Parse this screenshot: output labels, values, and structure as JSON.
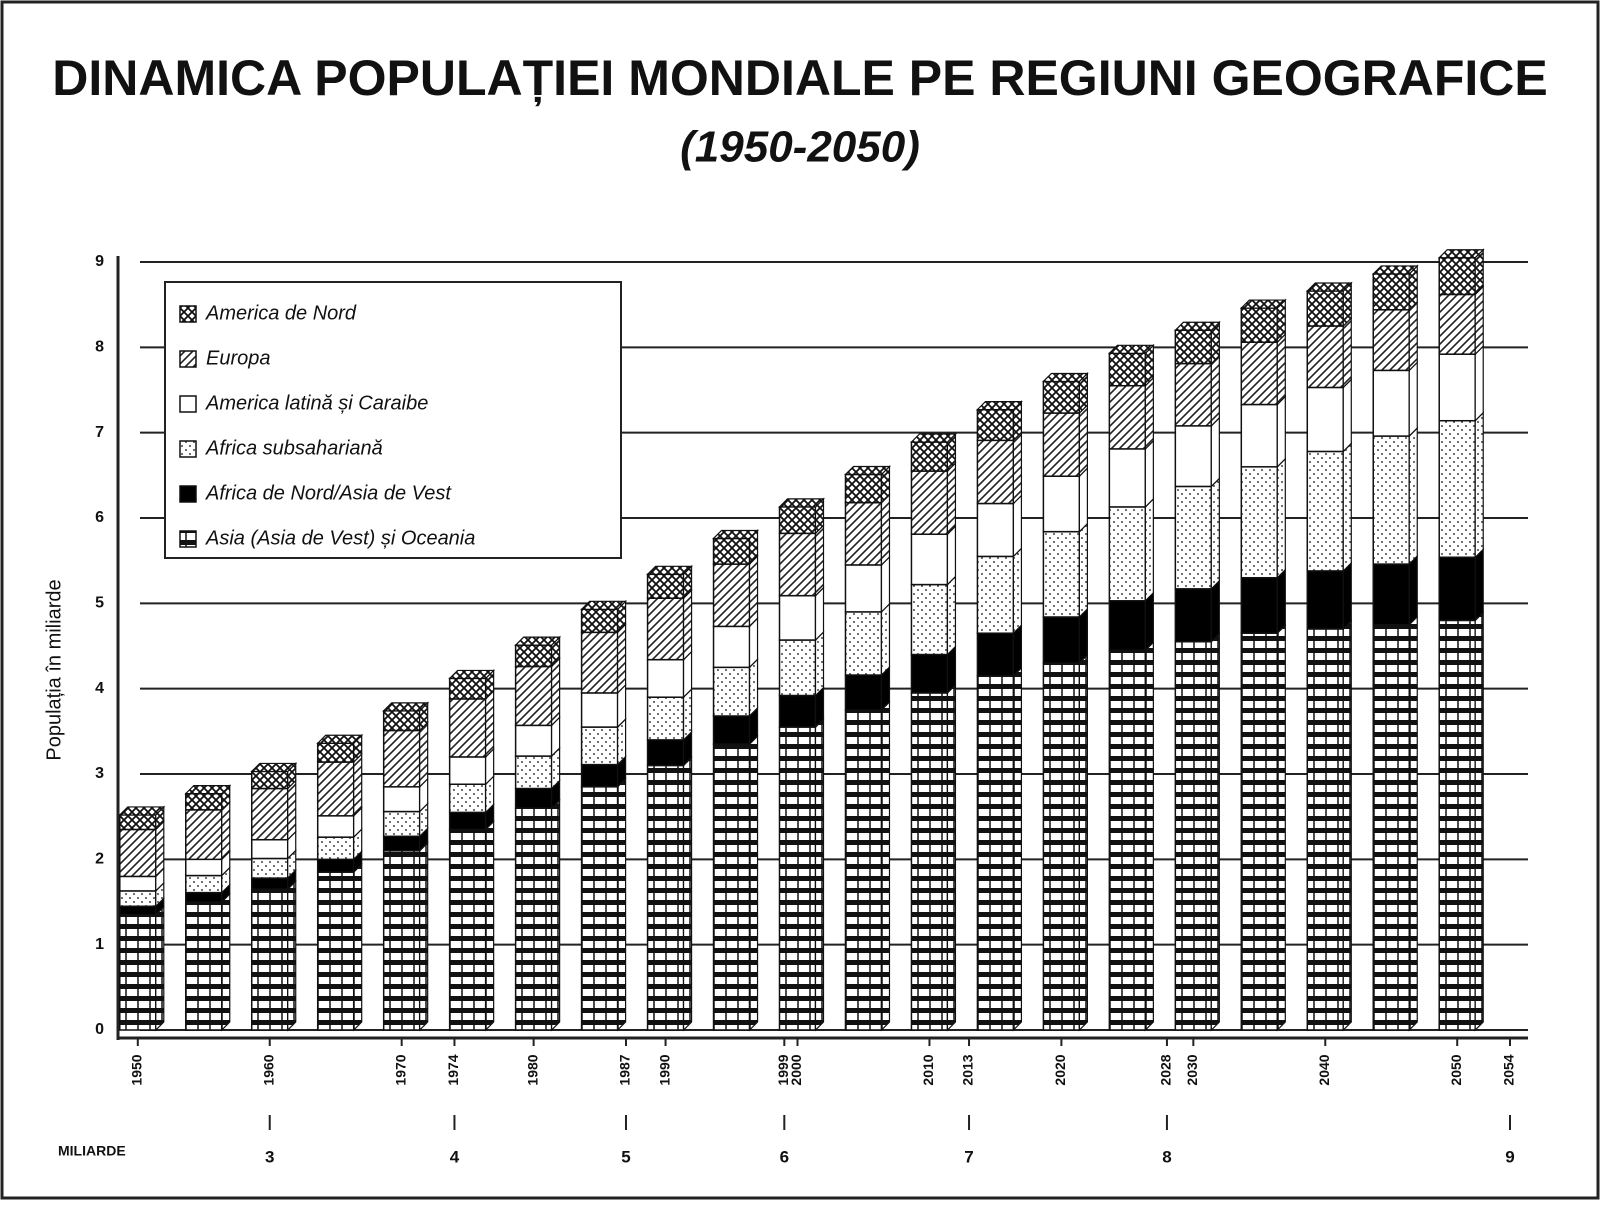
{
  "chart_data": {
    "type": "stacked-bar",
    "title": "DINAMICA POPULAȚIEI MONDIALE PE REGIUNI GEOGRAFICE",
    "subtitle": "(1950-2050)",
    "y_label": "Populația în miliarde",
    "x": [
      1950,
      1955,
      1960,
      1965,
      1970,
      1975,
      1980,
      1985,
      1990,
      1995,
      2000,
      2005,
      2010,
      2015,
      2020,
      2025,
      2030,
      2035,
      2040,
      2045,
      2050
    ],
    "xlim": [
      1948.5,
      2054
    ],
    "xticks": [
      1950,
      1960,
      1970,
      1974,
      1980,
      1987,
      1990,
      1999,
      2000,
      2010,
      2013,
      2020,
      2028,
      2030,
      2040,
      2050,
      2054
    ],
    "ylim": [
      0,
      9
    ],
    "yticks": [
      0,
      1,
      2,
      3,
      4,
      5,
      6,
      7,
      8,
      9
    ],
    "grid": true,
    "legend": "top-left",
    "series": [
      {
        "name": "Asia (Asia de Vest) și Oceania",
        "color": "#111111",
        "pattern": "bricks",
        "values": [
          1.35,
          1.5,
          1.65,
          1.85,
          2.1,
          2.35,
          2.6,
          2.85,
          3.1,
          3.35,
          3.55,
          3.75,
          3.95,
          4.15,
          4.3,
          4.45,
          4.55,
          4.65,
          4.7,
          4.75,
          4.8
        ]
      },
      {
        "name": "Africa de Nord/Asia de Vest",
        "color": "#000000",
        "pattern": "solid",
        "values": [
          0.1,
          0.11,
          0.13,
          0.15,
          0.17,
          0.2,
          0.23,
          0.26,
          0.3,
          0.33,
          0.37,
          0.41,
          0.45,
          0.5,
          0.54,
          0.58,
          0.62,
          0.65,
          0.68,
          0.71,
          0.74
        ]
      },
      {
        "name": "Africa subsahariană",
        "color": "#777777",
        "pattern": "dots",
        "values": [
          0.18,
          0.2,
          0.23,
          0.26,
          0.29,
          0.33,
          0.38,
          0.44,
          0.5,
          0.57,
          0.65,
          0.74,
          0.82,
          0.9,
          1.0,
          1.1,
          1.2,
          1.3,
          1.4,
          1.5,
          1.6
        ]
      },
      {
        "name": "America latină și Caraibe",
        "color": "#ffffff",
        "pattern": "none",
        "values": [
          0.17,
          0.19,
          0.22,
          0.25,
          0.29,
          0.32,
          0.36,
          0.4,
          0.44,
          0.48,
          0.52,
          0.55,
          0.59,
          0.62,
          0.65,
          0.68,
          0.71,
          0.73,
          0.75,
          0.77,
          0.78
        ]
      },
      {
        "name": "Europa",
        "color": "#333333",
        "pattern": "diagonal",
        "values": [
          0.55,
          0.58,
          0.6,
          0.63,
          0.66,
          0.68,
          0.69,
          0.71,
          0.72,
          0.73,
          0.73,
          0.73,
          0.74,
          0.74,
          0.74,
          0.74,
          0.73,
          0.73,
          0.72,
          0.71,
          0.7
        ]
      },
      {
        "name": "America de Nord",
        "color": "#222222",
        "pattern": "crosshatch",
        "values": [
          0.17,
          0.19,
          0.2,
          0.22,
          0.23,
          0.24,
          0.25,
          0.27,
          0.28,
          0.3,
          0.31,
          0.33,
          0.34,
          0.36,
          0.37,
          0.38,
          0.39,
          0.4,
          0.41,
          0.42,
          0.43
        ]
      }
    ],
    "milestones": {
      "label": "MILIARDE",
      "years": [
        1960,
        1974,
        1987,
        1999,
        2013,
        2028,
        2054
      ],
      "values": [
        3,
        4,
        5,
        6,
        7,
        8,
        9
      ]
    }
  }
}
